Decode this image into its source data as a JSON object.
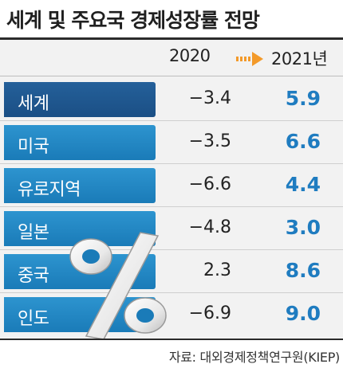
{
  "title": "세계 및 주요국 경제성장률 전망",
  "header": {
    "year1": "2020",
    "year2": "2021년"
  },
  "chart_data": {
    "type": "table",
    "columns": [
      "2020",
      "2021년"
    ],
    "rows": [
      {
        "label": "세계",
        "v2020": "−3.4",
        "v2021": "5.9"
      },
      {
        "label": "미국",
        "v2020": "−3.5",
        "v2021": "6.6"
      },
      {
        "label": "유로지역",
        "v2020": "−6.6",
        "v2021": "4.4"
      },
      {
        "label": "일본",
        "v2020": "−4.8",
        "v2021": "3.0"
      },
      {
        "label": "중국",
        "v2020": "2.3",
        "v2021": "8.6"
      },
      {
        "label": "인도",
        "v2020": "−6.9",
        "v2021": "9.0"
      }
    ]
  },
  "source": "자료: 대외경제정책연구원(KIEP)",
  "colors": {
    "accent_value": "#1f7cc0",
    "tab_first": "#1b4f85",
    "tab": "#1a7bb8",
    "arrow": "#f39a2a"
  }
}
